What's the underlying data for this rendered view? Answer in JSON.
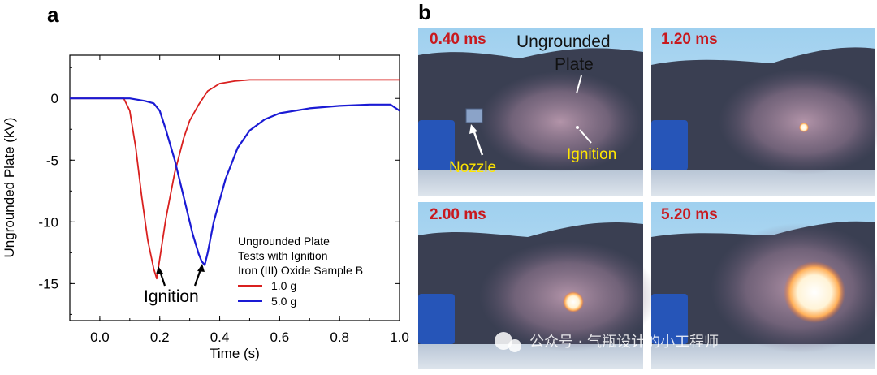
{
  "panels": {
    "a_letter": "a",
    "b_letter": "b"
  },
  "chart_data": {
    "type": "line",
    "xlabel": "Time (s)",
    "ylabel": "Ungrounded Plate (kV)",
    "xlim": [
      -0.1,
      1.0
    ],
    "ylim": [
      -18,
      3.5
    ],
    "xticks": [
      0.0,
      0.2,
      0.4,
      0.6,
      0.8,
      1.0
    ],
    "xtick_labels": [
      "0.0",
      "0.2",
      "0.4",
      "0.6",
      "0.8",
      "1.0"
    ],
    "yticks": [
      0,
      -5,
      -10,
      -15
    ],
    "ytick_labels": [
      "0",
      "-5",
      "-10",
      "-15"
    ],
    "grid": false,
    "legend_title_lines": [
      "Ungrounded Plate",
      "Tests with Ignition",
      "Iron (III) Oxide Sample B"
    ],
    "legend_placement": "lower-right",
    "series": [
      {
        "name": "1.0 g",
        "color": "#d9201f",
        "x": [
          -0.1,
          0.0,
          0.05,
          0.08,
          0.1,
          0.12,
          0.14,
          0.16,
          0.18,
          0.19,
          0.2,
          0.22,
          0.25,
          0.28,
          0.3,
          0.33,
          0.36,
          0.4,
          0.45,
          0.5,
          0.6,
          0.7,
          0.8,
          1.0
        ],
        "y": [
          0,
          0,
          0,
          0,
          -1.0,
          -4.0,
          -8.0,
          -11.5,
          -13.8,
          -14.6,
          -13.0,
          -9.8,
          -6.0,
          -3.2,
          -1.8,
          -0.5,
          0.6,
          1.2,
          1.4,
          1.5,
          1.5,
          1.5,
          1.5,
          1.5
        ]
      },
      {
        "name": "5.0 g",
        "color": "#1a1ad4",
        "x": [
          -0.1,
          0.0,
          0.05,
          0.1,
          0.15,
          0.18,
          0.2,
          0.22,
          0.25,
          0.28,
          0.31,
          0.33,
          0.34,
          0.35,
          0.36,
          0.38,
          0.42,
          0.46,
          0.5,
          0.55,
          0.6,
          0.7,
          0.8,
          0.9,
          0.97,
          1.0
        ],
        "y": [
          0,
          0,
          0,
          0,
          -0.2,
          -0.4,
          -1.0,
          -2.5,
          -5.0,
          -8.0,
          -11.0,
          -12.6,
          -13.2,
          -13.5,
          -12.5,
          -10.0,
          -6.5,
          -4.0,
          -2.6,
          -1.7,
          -1.2,
          -0.8,
          -0.6,
          -0.5,
          -0.5,
          -1.0
        ]
      }
    ],
    "annotations": [
      {
        "text": "Ignition",
        "arrows_to": [
          [
            0.19,
            -14.6
          ],
          [
            0.35,
            -13.5
          ]
        ]
      }
    ]
  },
  "photos": [
    {
      "time": "0.40 ms",
      "labels": [
        "Ungrounded",
        "Plate",
        "Nozzle",
        "Ignition"
      ],
      "fireball": "none"
    },
    {
      "time": "1.20 ms",
      "labels": [],
      "fireball": "tiny"
    },
    {
      "time": "2.00 ms",
      "labels": [],
      "fireball": "small"
    },
    {
      "time": "5.20 ms",
      "labels": [],
      "fireball": "large"
    }
  ],
  "watermark": "公众号 · 气瓶设计的小工程师"
}
